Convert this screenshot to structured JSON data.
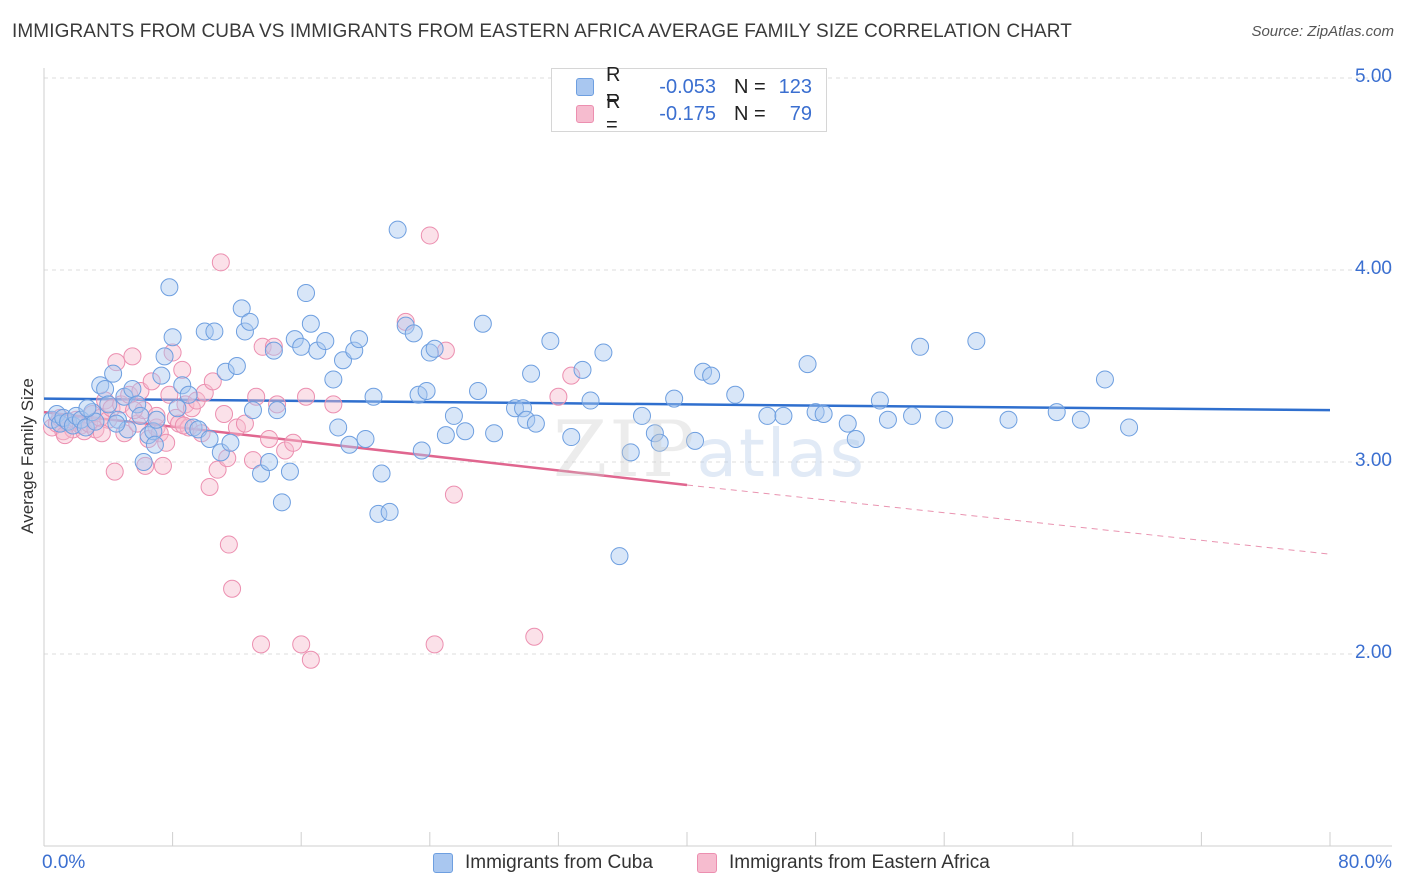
{
  "header": {
    "title": "IMMIGRANTS FROM CUBA VS IMMIGRANTS FROM EASTERN AFRICA AVERAGE FAMILY SIZE CORRELATION CHART",
    "source": "Source: ZipAtlas.com"
  },
  "watermark": {
    "zip": "ZIP",
    "atlas": "atlas"
  },
  "legend": {
    "row1": {
      "r_label": "R =",
      "r_value": "-0.053",
      "n_label": "N =",
      "n_value": "123"
    },
    "row2": {
      "r_label": "R =",
      "r_value": "-0.175",
      "n_label": "N =",
      "n_value": "79"
    }
  },
  "colors": {
    "cuba_fill": "#a9c7f0",
    "cuba_stroke": "#6e9fe0",
    "cuba_line": "#2f6fce",
    "africa_fill": "#f6bccf",
    "africa_stroke": "#ec8fb0",
    "africa_line": "#e0668f",
    "axis_text": "#3b6fd0",
    "grid": "#dddddd"
  },
  "chart_data": {
    "type": "scatter",
    "ylabel": "Average Family Size",
    "xlim": [
      0,
      80
    ],
    "ylim": [
      1.0,
      5.0
    ],
    "x_tick_labels": [
      "0.0%",
      "80.0%"
    ],
    "y_ticks": [
      2.0,
      3.0,
      4.0,
      5.0
    ],
    "y_tick_labels": [
      "2.00",
      "3.00",
      "4.00",
      "5.00"
    ],
    "grid": true,
    "legend_position": "top-center",
    "series": [
      {
        "name": "Immigrants from Cuba",
        "trend": {
          "x": [
            0,
            80
          ],
          "y": [
            3.33,
            3.27
          ]
        },
        "points": [
          [
            0.5,
            3.22
          ],
          [
            0.8,
            3.25
          ],
          [
            1.0,
            3.2
          ],
          [
            1.2,
            3.23
          ],
          [
            1.5,
            3.21
          ],
          [
            1.8,
            3.19
          ],
          [
            2.0,
            3.24
          ],
          [
            2.3,
            3.22
          ],
          [
            2.6,
            3.18
          ],
          [
            3.0,
            3.26
          ],
          [
            3.2,
            3.21
          ],
          [
            3.5,
            3.4
          ],
          [
            3.8,
            3.38
          ],
          [
            4.0,
            3.3
          ],
          [
            4.3,
            3.46
          ],
          [
            4.6,
            3.22
          ],
          [
            5.0,
            3.34
          ],
          [
            5.2,
            3.17
          ],
          [
            5.5,
            3.38
          ],
          [
            5.8,
            3.3
          ],
          [
            6.0,
            3.24
          ],
          [
            6.2,
            3.0
          ],
          [
            6.5,
            3.14
          ],
          [
            6.8,
            3.16
          ],
          [
            7.0,
            3.22
          ],
          [
            7.3,
            3.45
          ],
          [
            7.5,
            3.55
          ],
          [
            7.8,
            3.91
          ],
          [
            8.0,
            3.65
          ],
          [
            8.3,
            3.28
          ],
          [
            8.6,
            3.4
          ],
          [
            9.0,
            3.35
          ],
          [
            9.3,
            3.18
          ],
          [
            9.6,
            3.17
          ],
          [
            10.0,
            3.68
          ],
          [
            10.3,
            3.12
          ],
          [
            10.6,
            3.68
          ],
          [
            11.0,
            3.05
          ],
          [
            11.3,
            3.47
          ],
          [
            11.6,
            3.1
          ],
          [
            12.0,
            3.5
          ],
          [
            12.3,
            3.8
          ],
          [
            12.5,
            3.68
          ],
          [
            12.8,
            3.73
          ],
          [
            13.0,
            3.27
          ],
          [
            13.5,
            2.94
          ],
          [
            14.0,
            3.0
          ],
          [
            14.3,
            3.58
          ],
          [
            14.5,
            3.27
          ],
          [
            14.8,
            2.79
          ],
          [
            15.3,
            2.95
          ],
          [
            15.6,
            3.64
          ],
          [
            16.0,
            3.6
          ],
          [
            16.3,
            3.88
          ],
          [
            16.6,
            3.72
          ],
          [
            17.0,
            3.58
          ],
          [
            17.5,
            3.63
          ],
          [
            18.0,
            3.43
          ],
          [
            18.3,
            3.18
          ],
          [
            18.6,
            3.53
          ],
          [
            19.0,
            3.09
          ],
          [
            19.3,
            3.58
          ],
          [
            19.6,
            3.64
          ],
          [
            20.0,
            3.12
          ],
          [
            20.5,
            3.34
          ],
          [
            20.8,
            2.73
          ],
          [
            21.0,
            2.94
          ],
          [
            21.5,
            2.74
          ],
          [
            22.0,
            4.21
          ],
          [
            22.5,
            3.71
          ],
          [
            23.0,
            3.67
          ],
          [
            23.3,
            3.35
          ],
          [
            23.5,
            3.06
          ],
          [
            23.8,
            3.37
          ],
          [
            24.0,
            3.57
          ],
          [
            24.3,
            3.59
          ],
          [
            25.0,
            3.14
          ],
          [
            25.5,
            3.24
          ],
          [
            26.2,
            3.16
          ],
          [
            27.0,
            3.37
          ],
          [
            27.3,
            3.72
          ],
          [
            28.0,
            3.15
          ],
          [
            29.3,
            3.28
          ],
          [
            29.8,
            3.28
          ],
          [
            30.0,
            3.22
          ],
          [
            30.3,
            3.46
          ],
          [
            30.6,
            3.2
          ],
          [
            31.5,
            3.63
          ],
          [
            32.8,
            3.13
          ],
          [
            33.5,
            3.48
          ],
          [
            34.0,
            3.32
          ],
          [
            34.8,
            3.57
          ],
          [
            35.8,
            2.51
          ],
          [
            36.5,
            3.05
          ],
          [
            37.2,
            3.24
          ],
          [
            38.0,
            3.15
          ],
          [
            38.3,
            3.1
          ],
          [
            39.2,
            3.33
          ],
          [
            40.5,
            3.11
          ],
          [
            41.0,
            3.47
          ],
          [
            41.5,
            3.45
          ],
          [
            43.0,
            3.35
          ],
          [
            45.0,
            3.24
          ],
          [
            46.0,
            3.24
          ],
          [
            47.5,
            3.51
          ],
          [
            48.0,
            3.26
          ],
          [
            48.5,
            3.25
          ],
          [
            50.0,
            3.2
          ],
          [
            50.5,
            3.12
          ],
          [
            52.0,
            3.32
          ],
          [
            52.5,
            3.22
          ],
          [
            54.0,
            3.24
          ],
          [
            54.5,
            3.6
          ],
          [
            56.0,
            3.22
          ],
          [
            58.0,
            3.63
          ],
          [
            60.0,
            3.22
          ],
          [
            63.0,
            3.26
          ],
          [
            64.5,
            3.22
          ],
          [
            66.0,
            3.43
          ],
          [
            67.5,
            3.18
          ],
          [
            2.7,
            3.28
          ],
          [
            4.5,
            3.2
          ],
          [
            6.9,
            3.09
          ]
        ]
      },
      {
        "name": "Immigrants from Eastern Africa",
        "trend": {
          "x": [
            0,
            40
          ],
          "y": [
            3.26,
            2.88
          ]
        },
        "trend_extended": {
          "x": [
            40,
            80
          ],
          "y": [
            2.88,
            2.52
          ]
        },
        "points": [
          [
            0.5,
            3.18
          ],
          [
            0.8,
            3.2
          ],
          [
            1.0,
            3.23
          ],
          [
            1.2,
            3.16
          ],
          [
            1.5,
            3.2
          ],
          [
            1.8,
            3.17
          ],
          [
            2.0,
            3.22
          ],
          [
            2.3,
            3.19
          ],
          [
            2.5,
            3.16
          ],
          [
            2.8,
            3.2
          ],
          [
            3.0,
            3.25
          ],
          [
            3.2,
            3.17
          ],
          [
            3.5,
            3.23
          ],
          [
            3.8,
            3.32
          ],
          [
            4.0,
            3.22
          ],
          [
            4.2,
            3.28
          ],
          [
            4.4,
            2.95
          ],
          [
            4.5,
            3.52
          ],
          [
            4.8,
            3.3
          ],
          [
            5.0,
            3.15
          ],
          [
            5.3,
            3.35
          ],
          [
            5.5,
            3.55
          ],
          [
            5.8,
            3.2
          ],
          [
            6.0,
            3.37
          ],
          [
            6.2,
            3.27
          ],
          [
            6.3,
            2.98
          ],
          [
            6.5,
            3.12
          ],
          [
            6.7,
            3.42
          ],
          [
            7.0,
            3.18
          ],
          [
            7.2,
            3.15
          ],
          [
            7.4,
            2.98
          ],
          [
            7.6,
            3.1
          ],
          [
            7.8,
            3.35
          ],
          [
            8.0,
            3.57
          ],
          [
            8.2,
            3.23
          ],
          [
            8.4,
            3.2
          ],
          [
            8.6,
            3.48
          ],
          [
            8.8,
            3.3
          ],
          [
            9.0,
            3.18
          ],
          [
            9.2,
            3.28
          ],
          [
            9.5,
            3.32
          ],
          [
            9.8,
            3.15
          ],
          [
            10.0,
            3.36
          ],
          [
            10.3,
            2.87
          ],
          [
            10.5,
            3.42
          ],
          [
            10.8,
            2.96
          ],
          [
            11.0,
            4.04
          ],
          [
            11.2,
            3.25
          ],
          [
            11.4,
            3.02
          ],
          [
            11.5,
            2.57
          ],
          [
            11.7,
            2.34
          ],
          [
            12.0,
            3.18
          ],
          [
            12.5,
            3.2
          ],
          [
            13.0,
            3.01
          ],
          [
            13.2,
            3.34
          ],
          [
            13.5,
            2.05
          ],
          [
            13.6,
            3.6
          ],
          [
            14.0,
            3.12
          ],
          [
            14.3,
            3.6
          ],
          [
            14.5,
            3.3
          ],
          [
            15.0,
            3.06
          ],
          [
            15.5,
            3.1
          ],
          [
            16.0,
            2.05
          ],
          [
            16.3,
            3.34
          ],
          [
            16.6,
            1.97
          ],
          [
            18.0,
            3.3
          ],
          [
            22.5,
            3.73
          ],
          [
            24.0,
            4.18
          ],
          [
            24.3,
            2.05
          ],
          [
            25.0,
            3.58
          ],
          [
            25.5,
            2.83
          ],
          [
            30.5,
            2.09
          ],
          [
            32.0,
            3.34
          ],
          [
            32.8,
            3.45
          ],
          [
            1.3,
            3.14
          ],
          [
            3.6,
            3.15
          ],
          [
            5.6,
            3.27
          ],
          [
            7.0,
            3.24
          ],
          [
            8.7,
            3.19
          ]
        ]
      }
    ]
  },
  "bottom_legend": {
    "cuba": "Immigrants from Cuba",
    "africa": "Immigrants from Eastern Africa"
  }
}
